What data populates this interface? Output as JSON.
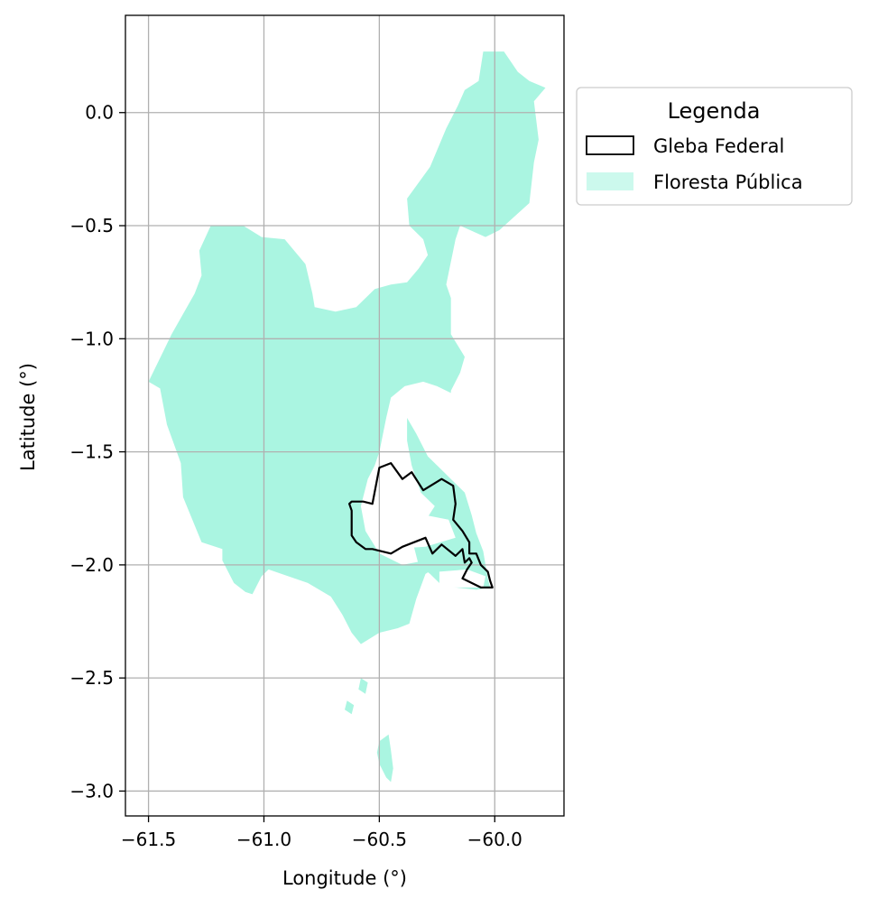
{
  "chart_data": {
    "type": "map",
    "xlabel": "Longitude (°)",
    "ylabel": "Latitude (°)",
    "xlim": [
      -61.6,
      -59.7
    ],
    "ylim": [
      -3.11,
      0.43
    ],
    "grid": true,
    "x_ticks": [
      -61.5,
      -61.0,
      -60.5,
      -60.0
    ],
    "x_tick_labels": [
      "−61.5",
      "−61.0",
      "−60.5",
      "−60.0"
    ],
    "y_ticks": [
      0.0,
      -0.5,
      -1.0,
      -1.5,
      -2.0,
      -2.5,
      -3.0
    ],
    "y_tick_labels": [
      "0.0",
      "−0.5",
      "−1.0",
      "−1.5",
      "−2.0",
      "−2.5",
      "−3.0"
    ],
    "legend": {
      "title": "Legenda",
      "placement": "outside-right-top",
      "entries": [
        {
          "label": "Gleba Federal",
          "style": "outline",
          "color": "#000000"
        },
        {
          "label": "Floresta Pública",
          "style": "fill",
          "color": "#aaf5e1"
        }
      ]
    },
    "colors": {
      "forest": "#aaf5e1",
      "gleba": "#000000",
      "grid": "#b0b0b0"
    },
    "layers": [
      {
        "name": "forest-main",
        "polygon": [
          [
            -61.5,
            -1.19
          ],
          [
            -61.4,
            -0.98
          ],
          [
            -61.3,
            -0.8
          ],
          [
            -61.27,
            -0.72
          ],
          [
            -61.28,
            -0.61
          ],
          [
            -61.23,
            -0.5
          ],
          [
            -61.09,
            -0.5
          ],
          [
            -61.01,
            -0.55
          ],
          [
            -60.91,
            -0.56
          ],
          [
            -60.82,
            -0.67
          ],
          [
            -60.79,
            -0.8
          ],
          [
            -60.78,
            -0.86
          ],
          [
            -60.69,
            -0.88
          ],
          [
            -60.6,
            -0.86
          ],
          [
            -60.52,
            -0.78
          ],
          [
            -60.45,
            -0.76
          ],
          [
            -60.38,
            -0.75
          ],
          [
            -60.33,
            -0.69
          ],
          [
            -60.29,
            -0.63
          ],
          [
            -60.31,
            -0.56
          ],
          [
            -60.37,
            -0.5
          ],
          [
            -60.38,
            -0.38
          ],
          [
            -60.28,
            -0.24
          ],
          [
            -60.21,
            -0.07
          ],
          [
            -60.16,
            0.03
          ],
          [
            -60.13,
            0.1
          ],
          [
            -60.07,
            0.14
          ],
          [
            -60.05,
            0.27
          ],
          [
            -59.96,
            0.27
          ],
          [
            -59.9,
            0.18
          ],
          [
            -59.85,
            0.14
          ],
          [
            -59.78,
            0.11
          ],
          [
            -59.83,
            0.05
          ],
          [
            -59.81,
            -0.12
          ],
          [
            -59.83,
            -0.22
          ],
          [
            -59.85,
            -0.4
          ],
          [
            -59.98,
            -0.52
          ],
          [
            -60.04,
            -0.55
          ],
          [
            -60.15,
            -0.5
          ],
          [
            -60.17,
            -0.56
          ],
          [
            -60.21,
            -0.76
          ],
          [
            -60.19,
            -0.82
          ],
          [
            -60.19,
            -0.98
          ],
          [
            -60.13,
            -1.08
          ],
          [
            -60.15,
            -1.15
          ],
          [
            -60.19,
            -1.23
          ],
          [
            -60.19,
            -1.24
          ],
          [
            -60.25,
            -1.21
          ],
          [
            -60.31,
            -1.19
          ],
          [
            -60.39,
            -1.21
          ],
          [
            -60.45,
            -1.26
          ],
          [
            -60.47,
            -1.35
          ],
          [
            -60.5,
            -1.5
          ],
          [
            -60.52,
            -1.56
          ],
          [
            -60.55,
            -1.62
          ],
          [
            -60.58,
            -1.74
          ],
          [
            -60.56,
            -1.85
          ],
          [
            -60.5,
            -1.95
          ],
          [
            -60.4,
            -2.0
          ],
          [
            -60.3,
            -1.98
          ],
          [
            -60.24,
            -2.0
          ],
          [
            -60.3,
            -2.04
          ],
          [
            -60.34,
            -2.15
          ],
          [
            -60.37,
            -2.26
          ],
          [
            -60.42,
            -2.28
          ],
          [
            -60.5,
            -2.3
          ],
          [
            -60.58,
            -2.35
          ],
          [
            -60.62,
            -2.3
          ],
          [
            -60.66,
            -2.22
          ],
          [
            -60.71,
            -2.14
          ],
          [
            -60.81,
            -2.08
          ],
          [
            -60.98,
            -2.02
          ],
          [
            -61.01,
            -2.05
          ],
          [
            -61.05,
            -2.13
          ],
          [
            -61.08,
            -2.12
          ],
          [
            -61.13,
            -2.08
          ],
          [
            -61.18,
            -1.98
          ],
          [
            -61.18,
            -1.93
          ],
          [
            -61.27,
            -1.9
          ],
          [
            -61.35,
            -1.7
          ],
          [
            -61.36,
            -1.55
          ],
          [
            -61.42,
            -1.38
          ],
          [
            -61.45,
            -1.22
          ]
        ]
      },
      {
        "name": "forest-east-strip",
        "polygon": [
          [
            -60.38,
            -1.35
          ],
          [
            -60.34,
            -1.42
          ],
          [
            -60.29,
            -1.52
          ],
          [
            -60.22,
            -1.59
          ],
          [
            -60.18,
            -1.63
          ],
          [
            -60.13,
            -1.68
          ],
          [
            -60.1,
            -1.78
          ],
          [
            -60.08,
            -1.86
          ],
          [
            -60.05,
            -1.94
          ],
          [
            -60.04,
            -2.0
          ],
          [
            -60.03,
            -2.06
          ],
          [
            -60.02,
            -2.1
          ],
          [
            -60.08,
            -2.11
          ],
          [
            -60.17,
            -2.1
          ],
          [
            -60.23,
            -2.09
          ],
          [
            -60.28,
            -2.04
          ],
          [
            -60.33,
            -2.0
          ],
          [
            -60.35,
            -1.92
          ],
          [
            -60.31,
            -1.82
          ],
          [
            -60.26,
            -1.74
          ],
          [
            -60.32,
            -1.68
          ],
          [
            -60.36,
            -1.56
          ],
          [
            -60.38,
            -1.45
          ]
        ]
      },
      {
        "name": "forest-south-islands",
        "polygons": [
          [
            [
              -60.5,
              -2.78
            ],
            [
              -60.46,
              -2.75
            ],
            [
              -60.45,
              -2.82
            ],
            [
              -60.44,
              -2.9
            ],
            [
              -60.45,
              -2.96
            ],
            [
              -60.47,
              -2.94
            ],
            [
              -60.5,
              -2.88
            ],
            [
              -60.51,
              -2.83
            ]
          ],
          [
            [
              -60.58,
              -2.5
            ],
            [
              -60.55,
              -2.52
            ],
            [
              -60.56,
              -2.57
            ],
            [
              -60.59,
              -2.55
            ]
          ],
          [
            [
              -60.64,
              -2.6
            ],
            [
              -60.61,
              -2.62
            ],
            [
              -60.62,
              -2.66
            ],
            [
              -60.65,
              -2.64
            ]
          ]
        ]
      },
      {
        "name": "gleba-federal",
        "polygon": [
          [
            -60.5,
            -1.57
          ],
          [
            -60.45,
            -1.55
          ],
          [
            -60.4,
            -1.62
          ],
          [
            -60.36,
            -1.59
          ],
          [
            -60.31,
            -1.67
          ],
          [
            -60.23,
            -1.62
          ],
          [
            -60.18,
            -1.65
          ],
          [
            -60.17,
            -1.73
          ],
          [
            -60.18,
            -1.8
          ],
          [
            -60.14,
            -1.85
          ],
          [
            -60.11,
            -1.9
          ],
          [
            -60.11,
            -1.95
          ],
          [
            -60.08,
            -1.95
          ],
          [
            -60.06,
            -2.0
          ],
          [
            -60.03,
            -2.03
          ],
          [
            -60.02,
            -2.07
          ],
          [
            -60.01,
            -2.1
          ],
          [
            -60.06,
            -2.1
          ],
          [
            -60.1,
            -2.08
          ],
          [
            -60.14,
            -2.06
          ],
          [
            -60.12,
            -2.02
          ],
          [
            -60.1,
            -1.99
          ],
          [
            -60.11,
            -1.97
          ],
          [
            -60.13,
            -1.99
          ],
          [
            -60.14,
            -1.93
          ],
          [
            -60.17,
            -1.96
          ],
          [
            -60.23,
            -1.91
          ],
          [
            -60.27,
            -1.95
          ],
          [
            -60.3,
            -1.88
          ],
          [
            -60.4,
            -1.92
          ],
          [
            -60.45,
            -1.95
          ],
          [
            -60.53,
            -1.93
          ],
          [
            -60.56,
            -1.93
          ],
          [
            -60.6,
            -1.9
          ],
          [
            -60.62,
            -1.87
          ],
          [
            -60.62,
            -1.76
          ],
          [
            -60.63,
            -1.73
          ],
          [
            -60.62,
            -1.72
          ],
          [
            -60.57,
            -1.72
          ],
          [
            -60.53,
            -1.73
          ]
        ]
      }
    ]
  }
}
